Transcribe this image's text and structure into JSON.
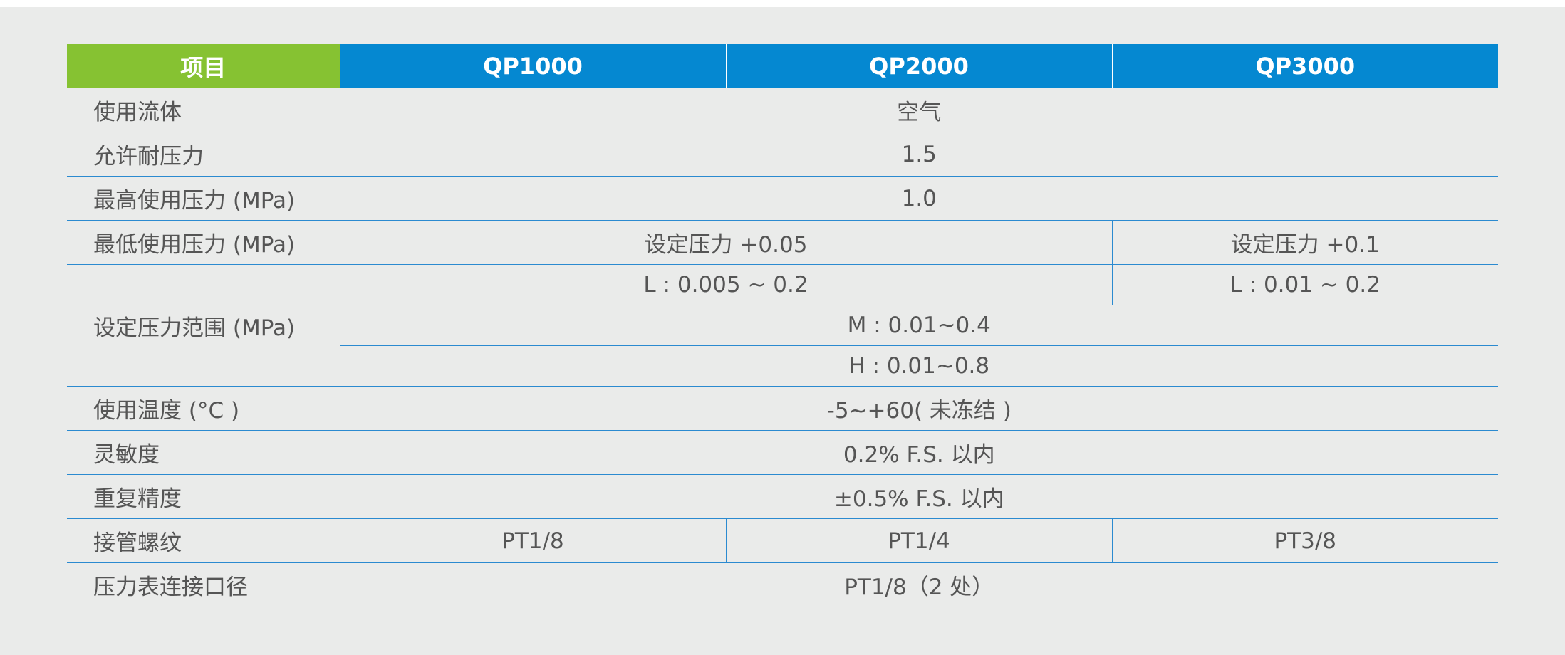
{
  "header": {
    "item": "项目",
    "models": [
      "QP1000",
      "QP2000",
      "QP3000"
    ]
  },
  "rows": {
    "fluid": {
      "label": "使用流体",
      "value": "空气"
    },
    "proof_pressure": {
      "label": "允许耐压力",
      "value": "1.5"
    },
    "max_pressure": {
      "label": "最高使用压力 (MPa)",
      "value": "1.0"
    },
    "min_pressure": {
      "label": "最低使用压力 (MPa)",
      "value_qp1000_qp2000": "设定压力 +0.05",
      "value_qp3000": "设定压力 +0.1"
    },
    "set_range": {
      "label": "设定压力范围 (MPa)",
      "l_qp1000_qp2000": "L : 0.005 ~ 0.2",
      "l_qp3000": "L : 0.01 ~ 0.2",
      "m": "M : 0.01~0.4",
      "h": "H : 0.01~0.8"
    },
    "temperature": {
      "label": "使用温度 (°C )",
      "value": "-5~+60( 未冻结 )"
    },
    "sensitivity": {
      "label": "灵敏度",
      "value": "0.2% F.S. 以内"
    },
    "repeatability": {
      "label": "重复精度",
      "value": "±0.5% F.S. 以内"
    },
    "port_thread": {
      "label": "接管螺纹",
      "values": [
        "PT1/8",
        "PT1/4",
        "PT3/8"
      ]
    },
    "gauge_port": {
      "label": "压力表连接口径",
      "value": "PT1/8（2 处）"
    }
  },
  "colors": {
    "header_item_bg": "#86c232",
    "header_model_bg": "#0588d1",
    "grid_line": "#2b8ad0",
    "background": "#eaebea",
    "text": "#555555"
  }
}
